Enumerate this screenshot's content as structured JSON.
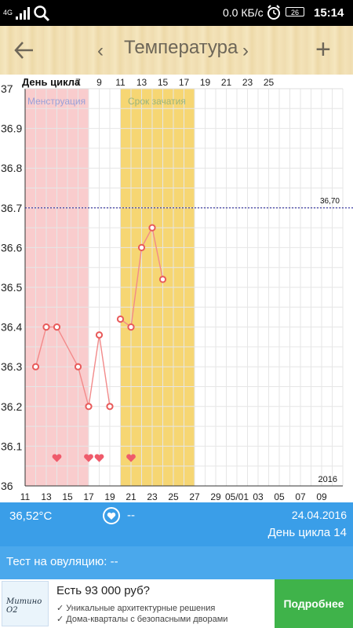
{
  "status_bar": {
    "network": "4G",
    "speed": "0.0 КБ/с",
    "battery": "26",
    "time": "15:14"
  },
  "app_bar": {
    "title": "Температура"
  },
  "chart_data": {
    "type": "line",
    "x_axis_title": "День цикла",
    "top_tick_labels": [
      "7",
      "9",
      "11",
      "13",
      "15",
      "17",
      "19",
      "21",
      "23",
      "25"
    ],
    "bottom_tick_labels": [
      "11",
      "13",
      "15",
      "17",
      "19",
      "21",
      "23",
      "25",
      "27",
      "29",
      "05/01",
      "03",
      "05",
      "07",
      "09"
    ],
    "y_tick_labels": [
      "36",
      "36.1",
      "36.2",
      "36.3",
      "36.4",
      "36.5",
      "36.6",
      "36.7",
      "36.8",
      "36.9",
      "37"
    ],
    "ylim": [
      36,
      37
    ],
    "x_start_day": 11,
    "x_end_day": 41,
    "series": [
      {
        "segment": 1,
        "points": [
          [
            12,
            36.3
          ],
          [
            13,
            36.4
          ],
          [
            14,
            36.4
          ],
          [
            16,
            36.3
          ],
          [
            17,
            36.2
          ],
          [
            18,
            36.38
          ],
          [
            19,
            36.2
          ]
        ]
      },
      {
        "segment": 2,
        "points": [
          [
            20,
            36.42
          ],
          [
            21,
            36.4
          ],
          [
            22,
            36.6
          ],
          [
            23,
            36.65
          ],
          [
            24,
            36.52
          ]
        ]
      }
    ],
    "bands": [
      {
        "name": "Менструация",
        "from_day": 11,
        "to_day": 17,
        "color": "#f9cccd"
      },
      {
        "name": "Срок зачатия",
        "from_day": 20,
        "to_day": 27,
        "color": "#f6d673"
      }
    ],
    "hearts_days": [
      14,
      17,
      18,
      21
    ],
    "reference_line": {
      "value": 36.7,
      "label": "36,70"
    },
    "year_label": "2016",
    "line_color": "#f28a8a",
    "grid": true
  },
  "info_bar": {
    "temperature": "36,52°C",
    "intercourse_value": "--",
    "date": "24.04.2016",
    "cycle_day": "День цикла 14"
  },
  "ovulation": {
    "label": "Тест на овуляцию:  --"
  },
  "ad": {
    "logo_text": "Митино О2",
    "headline": "Есть 93 000 руб?",
    "line1": "✓ Уникальные архитектурные решения",
    "line2": "✓ Дома-кварталы с безопасными дворами",
    "cta": "Подробнее"
  }
}
